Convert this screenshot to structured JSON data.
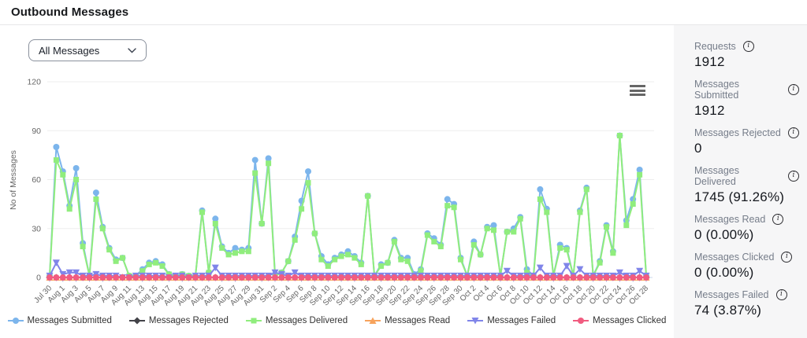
{
  "header": {
    "title": "Outbound Messages"
  },
  "filter": {
    "selected_option": "All Messages"
  },
  "export_menu": {
    "icon": "hamburger-icon"
  },
  "chart_data": {
    "type": "line",
    "title": "",
    "xlabel": "",
    "ylabel": "No of Messages",
    "ylim": [
      0,
      120
    ],
    "yticks": [
      0,
      30,
      60,
      90,
      120
    ],
    "grid": true,
    "legend_position": "bottom",
    "points_per_label": 2,
    "x_labels": [
      "Jul 30",
      "Aug 1",
      "Aug 3",
      "Aug 5",
      "Aug 7",
      "Aug 9",
      "Aug 11",
      "Aug 13",
      "Aug 15",
      "Aug 17",
      "Aug 19",
      "Aug 21",
      "Aug 23",
      "Aug 25",
      "Aug 27",
      "Aug 29",
      "Aug 31",
      "Sep 2",
      "Sep 4",
      "Sep 6",
      "Sep 8",
      "Sep 10",
      "Sep 12",
      "Sep 14",
      "Sep 16",
      "Sep 18",
      "Sep 20",
      "Sep 22",
      "Sep 24",
      "Sep 26",
      "Sep 28",
      "Sep 30",
      "Oct 2",
      "Oct 4",
      "Oct 6",
      "Oct 8",
      "Oct 10",
      "Oct 12",
      "Oct 14",
      "Oct 16",
      "Oct 18",
      "Oct 20",
      "Oct 22",
      "Oct 24",
      "Oct 26",
      "Oct 28"
    ],
    "series": [
      {
        "name": "Messages Submitted",
        "color": "#7cb5ec",
        "marker": "circle",
        "values": [
          1,
          80,
          65,
          44,
          67,
          21,
          1,
          52,
          31,
          18,
          11,
          12,
          1,
          1,
          5,
          9,
          10,
          8,
          2,
          1,
          2,
          1,
          1,
          41,
          3,
          36,
          19,
          15,
          18,
          17,
          18,
          72,
          33,
          73,
          2,
          3,
          10,
          25,
          47,
          65,
          27,
          13,
          8,
          12,
          14,
          16,
          13,
          9,
          50,
          1,
          8,
          9,
          23,
          12,
          12,
          2,
          5,
          27,
          24,
          20,
          48,
          45,
          12,
          1,
          22,
          14,
          31,
          32,
          1,
          28,
          30,
          37,
          5,
          1,
          54,
          42,
          1,
          20,
          18,
          1,
          41,
          55,
          1,
          10,
          32,
          16,
          87,
          35,
          48,
          66,
          1
        ]
      },
      {
        "name": "Messages Rejected",
        "color": "#434348",
        "marker": "diamond",
        "values_constant": 0
      },
      {
        "name": "Messages Delivered",
        "color": "#90ed7d",
        "marker": "square",
        "values": [
          1,
          72,
          63,
          42,
          60,
          19,
          1,
          48,
          30,
          17,
          10,
          12,
          1,
          1,
          4,
          8,
          9,
          7,
          2,
          1,
          2,
          1,
          1,
          40,
          3,
          33,
          18,
          14,
          15,
          16,
          16,
          64,
          33,
          70,
          1,
          3,
          10,
          23,
          42,
          58,
          27,
          11,
          7,
          11,
          13,
          14,
          12,
          8,
          50,
          1,
          7,
          9,
          22,
          11,
          10,
          1,
          4,
          26,
          22,
          19,
          44,
          43,
          11,
          1,
          20,
          14,
          30,
          29,
          1,
          28,
          28,
          36,
          3,
          1,
          48,
          40,
          1,
          18,
          17,
          1,
          40,
          54,
          1,
          9,
          31,
          15,
          87,
          32,
          45,
          63,
          1
        ]
      },
      {
        "name": "Messages Read",
        "color": "#f7a35c",
        "marker": "triangle",
        "values_constant": 0
      },
      {
        "name": "Messages Failed",
        "color": "#8085e9",
        "marker": "triangle-down",
        "values": [
          1,
          9,
          2,
          3,
          3,
          1,
          1,
          2,
          1,
          1,
          1,
          0,
          0,
          1,
          1,
          1,
          1,
          1,
          0,
          1,
          1,
          0,
          1,
          1,
          1,
          6,
          1,
          1,
          1,
          1,
          1,
          1,
          1,
          1,
          3,
          2,
          1,
          3,
          1,
          1,
          1,
          1,
          1,
          1,
          1,
          1,
          1,
          1,
          1,
          1,
          1,
          1,
          1,
          1,
          1,
          1,
          1,
          1,
          1,
          1,
          1,
          1,
          1,
          1,
          1,
          1,
          1,
          1,
          1,
          4,
          1,
          1,
          1,
          1,
          6,
          1,
          1,
          1,
          7,
          1,
          5,
          1,
          1,
          1,
          1,
          1,
          3,
          1,
          1,
          4,
          1
        ]
      },
      {
        "name": "Messages Clicked",
        "color": "#f15c80",
        "marker": "circle",
        "values_constant": 0
      }
    ]
  },
  "sidebar": {
    "stats": [
      {
        "label": "Requests",
        "value": "1912"
      },
      {
        "label": "Messages Submitted",
        "value": "1912"
      },
      {
        "label": "Messages Rejected",
        "value": "0"
      },
      {
        "label": "Messages Delivered",
        "value": "1745 (91.26%)"
      },
      {
        "label": "Messages Read",
        "value": "0 (0.00%)"
      },
      {
        "label": "Messages Clicked",
        "value": "0 (0.00%)"
      },
      {
        "label": "Messages Failed",
        "value": "74 (3.87%)"
      }
    ],
    "info_icon_glyph": "i"
  }
}
